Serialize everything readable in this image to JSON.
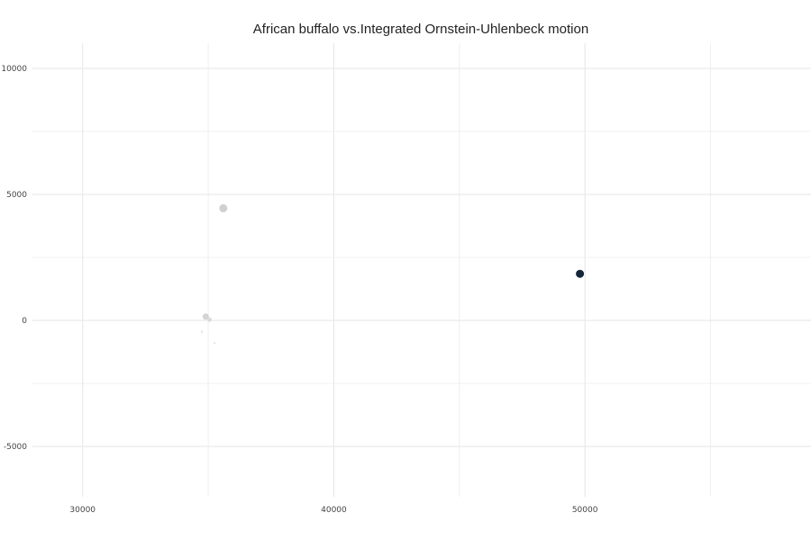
{
  "chart_data": {
    "type": "scatter",
    "title": "African buffalo vs.Integrated Ornstein-Uhlenbeck motion",
    "xlabel": "",
    "ylabel": "",
    "xlim": [
      28000,
      59000
    ],
    "ylim": [
      -7000,
      11000
    ],
    "x_ticks": [
      30000,
      40000,
      50000
    ],
    "y_ticks": [
      -5000,
      0,
      5000,
      10000
    ],
    "x_ticks_minor": [
      35000,
      45000,
      55000
    ],
    "y_ticks_minor": [
      -2500,
      2500,
      7500
    ],
    "grid": true,
    "legend": "none",
    "points": [
      {
        "x": 35600,
        "y": 4450,
        "size": 4.5,
        "color": "#d0d0d0"
      },
      {
        "x": 34900,
        "y": 150,
        "size": 3.5,
        "color": "#d4d4d4"
      },
      {
        "x": 35050,
        "y": 30,
        "size": 2.5,
        "color": "#dcdcdc"
      },
      {
        "x": 34750,
        "y": -450,
        "size": 1.2,
        "color": "#e2e2e2"
      },
      {
        "x": 35250,
        "y": -900,
        "size": 1.2,
        "color": "#e4e4e4"
      },
      {
        "x": 49800,
        "y": 1850,
        "size": 4.5,
        "color": "#15263a"
      }
    ]
  }
}
